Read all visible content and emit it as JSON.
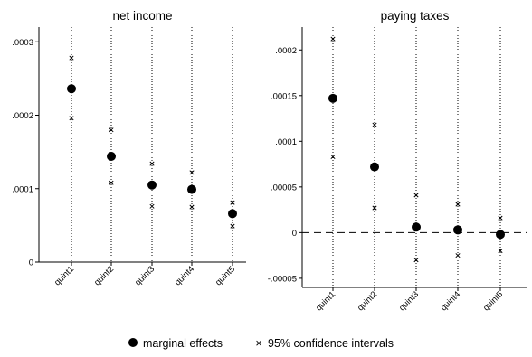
{
  "chart_data": [
    {
      "type": "scatter",
      "title": "net income",
      "categories": [
        "quint1",
        "quint2",
        "quint3",
        "quint4",
        "quint5"
      ],
      "ylim": [
        0,
        0.00032
      ],
      "yticks": [
        0,
        0.0001,
        0.0002,
        0.0003
      ],
      "ytick_labels": [
        "0",
        ".0001",
        ".0002",
        ".0003"
      ],
      "reference_line": 0,
      "series": [
        {
          "name": "marginal effects",
          "marker": "circle",
          "values": [
            0.000236,
            0.000144,
            0.000105,
            9.9e-05,
            6.6e-05
          ]
        },
        {
          "name": "95% confidence intervals",
          "marker": "x",
          "lower": [
            0.000196,
            0.000108,
            7.6e-05,
            7.5e-05,
            4.9e-05
          ],
          "upper": [
            0.000278,
            0.00018,
            0.000134,
            0.000122,
            8.1e-05
          ]
        }
      ]
    },
    {
      "type": "scatter",
      "title": "paying taxes",
      "categories": [
        "quint1",
        "quint2",
        "quint3",
        "quint4",
        "quint5"
      ],
      "ylim": [
        -6e-05,
        0.000225
      ],
      "yticks": [
        -5e-05,
        0,
        5e-05,
        0.0001,
        0.00015,
        0.0002
      ],
      "ytick_labels": [
        "-.00005",
        "0",
        ".00005",
        ".0001",
        ".00015",
        ".0002"
      ],
      "reference_line": 0,
      "series": [
        {
          "name": "marginal effects",
          "marker": "circle",
          "values": [
            0.000147,
            7.2e-05,
            6e-06,
            3e-06,
            -2e-06
          ]
        },
        {
          "name": "95% confidence intervals",
          "marker": "x",
          "lower": [
            8.3e-05,
            2.7e-05,
            -3e-05,
            -2.5e-05,
            -2e-05
          ],
          "upper": [
            0.000212,
            0.000118,
            4.1e-05,
            3.1e-05,
            1.6e-05
          ]
        }
      ]
    }
  ],
  "legend": {
    "position": "bottom-center",
    "effects_label": "marginal effects",
    "ci_label": "95% confidence intervals",
    "ci_symbol": "×"
  }
}
